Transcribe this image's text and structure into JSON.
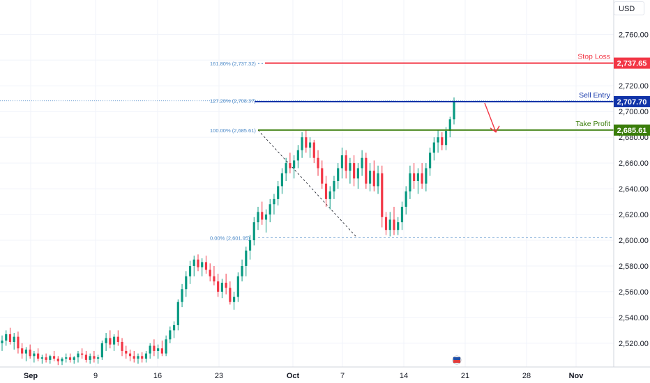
{
  "currency_button": "USD",
  "chart_data": {
    "type": "candlestick",
    "title": "",
    "xlabel": "",
    "ylabel": "",
    "ylim": [
      2505,
      2780
    ],
    "y_ticks": [
      "2,520.00",
      "2,540.00",
      "2,560.00",
      "2,580.00",
      "2,600.00",
      "2,620.00",
      "2,640.00",
      "2,660.00",
      "2,680.00",
      "2,700.00",
      "2,720.00",
      "2,740.00",
      "2,760.00"
    ],
    "x_ticks": [
      "Sep",
      "9",
      "16",
      "23",
      "Oct",
      "7",
      "14",
      "21",
      "28",
      "Nov"
    ],
    "colors": {
      "up": "#089981",
      "down": "#f23645",
      "stop": "#f23645",
      "sell": "#1033a8",
      "take": "#3a7d0a"
    },
    "fib_levels": [
      {
        "label": "161.80% (2,737.32)",
        "value": 2737.32
      },
      {
        "label": "127.20% (2,708.37)",
        "value": 2708.37
      },
      {
        "label": "100.00% (2,685.61)",
        "value": 2685.61
      },
      {
        "label": "0.00% (2,601.95)",
        "value": 2601.95
      }
    ],
    "levels": [
      {
        "name": "Stop Loss",
        "value": 2737.65,
        "badge": "2,737.65"
      },
      {
        "name": "Sell Entry",
        "value": 2707.7,
        "badge": "2,707.70"
      },
      {
        "name": "Take Profit",
        "value": 2685.61,
        "badge": "2,685.61"
      }
    ],
    "candles": [
      [
        2520,
        2526,
        2514,
        2522
      ],
      [
        2522,
        2530,
        2518,
        2527
      ],
      [
        2527,
        2532,
        2519,
        2521
      ],
      [
        2521,
        2528,
        2515,
        2525
      ],
      [
        2525,
        2529,
        2512,
        2516
      ],
      [
        2516,
        2520,
        2508,
        2512
      ],
      [
        2512,
        2517,
        2506,
        2515
      ],
      [
        2515,
        2519,
        2508,
        2510
      ],
      [
        2510,
        2514,
        2505,
        2512
      ],
      [
        2512,
        2516,
        2506,
        2508
      ],
      [
        2508,
        2511,
        2504,
        2509
      ],
      [
        2509,
        2512,
        2505,
        2507
      ],
      [
        2507,
        2511,
        2504,
        2510
      ],
      [
        2510,
        2514,
        2506,
        2508
      ],
      [
        2508,
        2510,
        2503,
        2506
      ],
      [
        2506,
        2509,
        2503,
        2508
      ],
      [
        2508,
        2512,
        2505,
        2509
      ],
      [
        2509,
        2512,
        2505,
        2507
      ],
      [
        2507,
        2510,
        2504,
        2509
      ],
      [
        2509,
        2514,
        2505,
        2512
      ],
      [
        2512,
        2516,
        2508,
        2511
      ],
      [
        2511,
        2514,
        2505,
        2507
      ],
      [
        2507,
        2512,
        2504,
        2510
      ],
      [
        2510,
        2514,
        2505,
        2508
      ],
      [
        2508,
        2511,
        2504,
        2509
      ],
      [
        2509,
        2522,
        2507,
        2520
      ],
      [
        2520,
        2528,
        2514,
        2524
      ],
      [
        2524,
        2530,
        2516,
        2519
      ],
      [
        2519,
        2527,
        2514,
        2525
      ],
      [
        2525,
        2530,
        2518,
        2521
      ],
      [
        2521,
        2524,
        2510,
        2514
      ],
      [
        2514,
        2518,
        2508,
        2512
      ],
      [
        2512,
        2515,
        2506,
        2510
      ],
      [
        2510,
        2514,
        2505,
        2508
      ],
      [
        2508,
        2512,
        2504,
        2510
      ],
      [
        2510,
        2513,
        2505,
        2508
      ],
      [
        2508,
        2514,
        2505,
        2512
      ],
      [
        2512,
        2520,
        2508,
        2518
      ],
      [
        2518,
        2523,
        2510,
        2514
      ],
      [
        2514,
        2519,
        2508,
        2516
      ],
      [
        2516,
        2522,
        2510,
        2512
      ],
      [
        2512,
        2526,
        2510,
        2523
      ],
      [
        2523,
        2533,
        2520,
        2530
      ],
      [
        2530,
        2537,
        2524,
        2534
      ],
      [
        2534,
        2554,
        2530,
        2552
      ],
      [
        2552,
        2566,
        2548,
        2562
      ],
      [
        2562,
        2576,
        2556,
        2572
      ],
      [
        2572,
        2584,
        2566,
        2580
      ],
      [
        2580,
        2588,
        2572,
        2585
      ],
      [
        2585,
        2589,
        2576,
        2579
      ],
      [
        2579,
        2586,
        2572,
        2583
      ],
      [
        2583,
        2588,
        2574,
        2577
      ],
      [
        2577,
        2582,
        2568,
        2572
      ],
      [
        2572,
        2580,
        2565,
        2568
      ],
      [
        2568,
        2574,
        2556,
        2560
      ],
      [
        2560,
        2570,
        2555,
        2567
      ],
      [
        2567,
        2574,
        2558,
        2563
      ],
      [
        2563,
        2568,
        2550,
        2552
      ],
      [
        2552,
        2560,
        2546,
        2556
      ],
      [
        2556,
        2575,
        2552,
        2572
      ],
      [
        2572,
        2585,
        2568,
        2580
      ],
      [
        2580,
        2595,
        2572,
        2592
      ],
      [
        2592,
        2604,
        2585,
        2600
      ],
      [
        2600,
        2618,
        2596,
        2614
      ],
      [
        2614,
        2626,
        2608,
        2622
      ],
      [
        2622,
        2630,
        2612,
        2616
      ],
      [
        2616,
        2624,
        2606,
        2620
      ],
      [
        2620,
        2632,
        2614,
        2628
      ],
      [
        2628,
        2636,
        2620,
        2632
      ],
      [
        2632,
        2646,
        2627,
        2642
      ],
      [
        2642,
        2656,
        2636,
        2652
      ],
      [
        2652,
        2664,
        2646,
        2660
      ],
      [
        2660,
        2668,
        2652,
        2656
      ],
      [
        2656,
        2666,
        2648,
        2662
      ],
      [
        2662,
        2674,
        2656,
        2670
      ],
      [
        2670,
        2684,
        2664,
        2680
      ],
      [
        2680,
        2686,
        2668,
        2672
      ],
      [
        2672,
        2680,
        2664,
        2676
      ],
      [
        2676,
        2678,
        2660,
        2664
      ],
      [
        2664,
        2670,
        2650,
        2656
      ],
      [
        2656,
        2662,
        2640,
        2644
      ],
      [
        2644,
        2650,
        2626,
        2632
      ],
      [
        2632,
        2642,
        2624,
        2638
      ],
      [
        2638,
        2650,
        2632,
        2646
      ],
      [
        2646,
        2660,
        2640,
        2656
      ],
      [
        2656,
        2672,
        2648,
        2666
      ],
      [
        2666,
        2670,
        2648,
        2654
      ],
      [
        2654,
        2664,
        2644,
        2660
      ],
      [
        2660,
        2666,
        2642,
        2648
      ],
      [
        2648,
        2660,
        2640,
        2656
      ],
      [
        2656,
        2670,
        2650,
        2664
      ],
      [
        2664,
        2668,
        2640,
        2644
      ],
      [
        2644,
        2660,
        2638,
        2654
      ],
      [
        2654,
        2662,
        2638,
        2642
      ],
      [
        2642,
        2658,
        2636,
        2652
      ],
      [
        2652,
        2658,
        2610,
        2618
      ],
      [
        2618,
        2622,
        2604,
        2608
      ],
      [
        2608,
        2622,
        2603,
        2616
      ],
      [
        2616,
        2626,
        2604,
        2608
      ],
      [
        2608,
        2618,
        2604,
        2614
      ],
      [
        2614,
        2630,
        2608,
        2626
      ],
      [
        2626,
        2642,
        2620,
        2638
      ],
      [
        2638,
        2658,
        2632,
        2652
      ],
      [
        2652,
        2660,
        2640,
        2646
      ],
      [
        2646,
        2656,
        2636,
        2652
      ],
      [
        2652,
        2660,
        2640,
        2644
      ],
      [
        2644,
        2660,
        2638,
        2656
      ],
      [
        2656,
        2672,
        2650,
        2668
      ],
      [
        2668,
        2680,
        2662,
        2676
      ],
      [
        2676,
        2686,
        2668,
        2680
      ],
      [
        2680,
        2684,
        2670,
        2674
      ],
      [
        2674,
        2688,
        2670,
        2685
      ],
      [
        2685,
        2696,
        2680,
        2694
      ],
      [
        2694,
        2711,
        2690,
        2707.7
      ]
    ]
  }
}
